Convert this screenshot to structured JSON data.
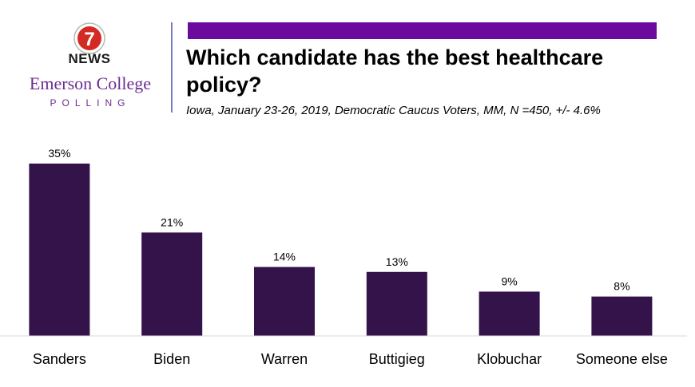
{
  "branding": {
    "logo_number": "7",
    "logo_text": "NEWS",
    "org_name": "Emerson College",
    "org_sub": "POLLING"
  },
  "colors": {
    "bar": "#34124a",
    "accent_bar": "#6c0a9e",
    "brand_purple": "#6b2c91"
  },
  "chart_data": {
    "type": "bar",
    "title": "Which candidate has the best healthcare policy?",
    "subtitle": "Iowa, January 23-26, 2019, Democratic Caucus Voters, MM, N =450, +/-  4.6%",
    "categories": [
      "Sanders",
      "Biden",
      "Warren",
      "Buttigieg",
      "Klobuchar",
      "Someone else"
    ],
    "values": [
      35,
      21,
      14,
      13,
      9,
      8
    ],
    "data_labels": [
      "35%",
      "21%",
      "14%",
      "13%",
      "9%",
      "8%"
    ],
    "ylim": [
      0,
      35
    ],
    "grid": false,
    "legend": "none"
  }
}
